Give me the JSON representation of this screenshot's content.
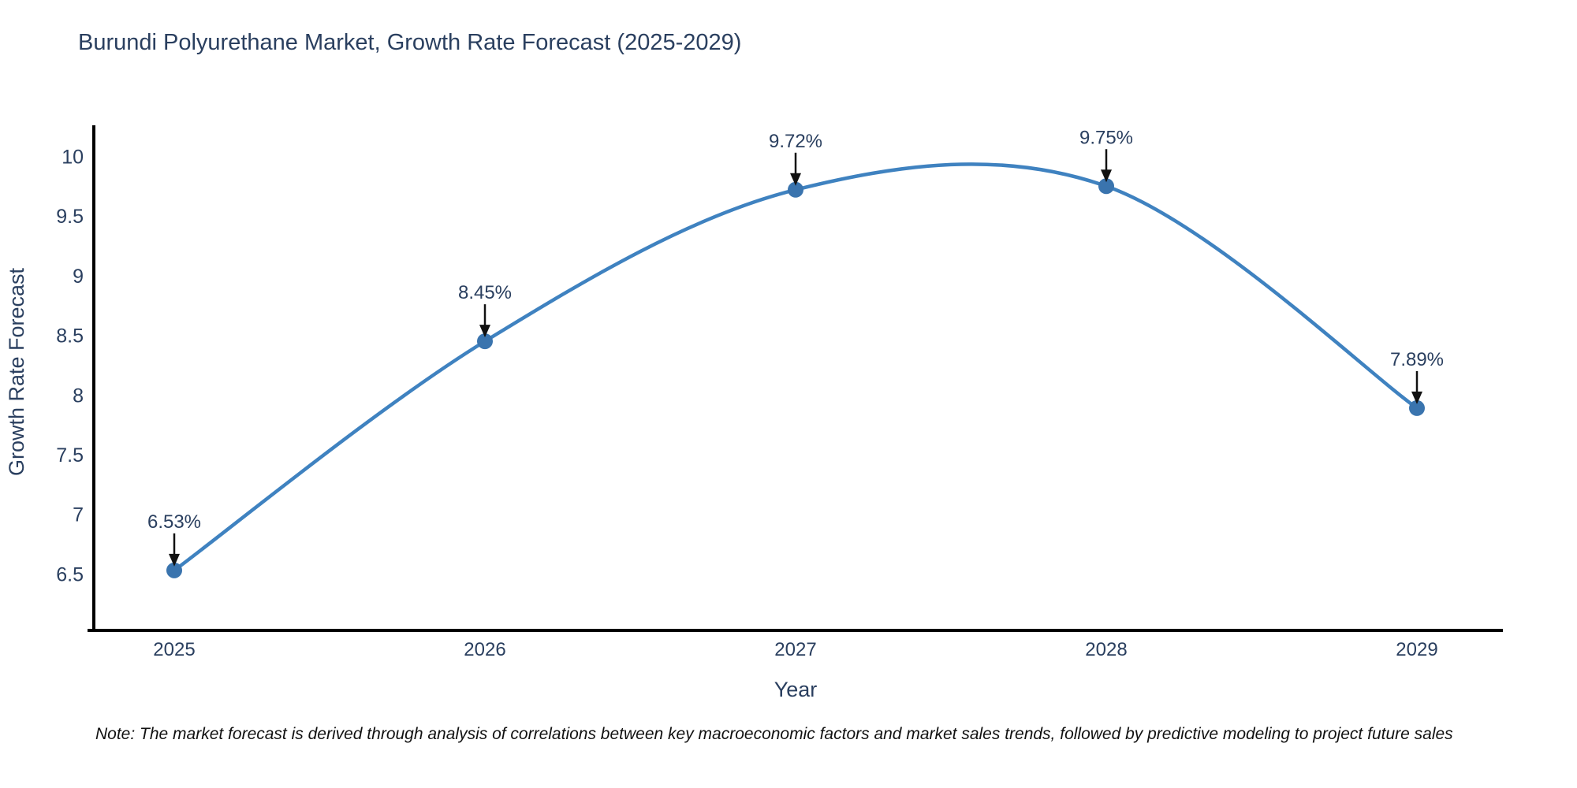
{
  "chart_data": {
    "type": "line",
    "line_style": "spline",
    "title": "Burundi Polyurethane Market, Growth Rate Forecast (2025-2029)",
    "xlabel": "Year",
    "ylabel": "Growth Rate Forecast",
    "categories": [
      "2025",
      "2026",
      "2027",
      "2028",
      "2029"
    ],
    "series": [
      {
        "name": "Growth Rate Forecast",
        "values": [
          6.53,
          8.45,
          9.72,
          9.75,
          7.89
        ]
      }
    ],
    "point_labels": [
      "6.53%",
      "8.45%",
      "9.72%",
      "9.75%",
      "7.89%"
    ],
    "yticks": [
      "6.5",
      "7",
      "7.5",
      "8",
      "8.5",
      "9",
      "9.5",
      "10"
    ],
    "ylim": [
      6.0,
      10.3
    ],
    "grid": false,
    "legend": "none",
    "colors": {
      "line": "#3f82c0",
      "marker": "#3a74ae",
      "arrow": "#111111",
      "axis": "#000000",
      "tick_text": "#2a3f5f",
      "title_text": "#2a3f5f"
    },
    "note": "Note: The market forecast is derived through analysis of correlations between key macroeconomic factors and market sales trends, followed by predictive modeling to project future sales"
  }
}
